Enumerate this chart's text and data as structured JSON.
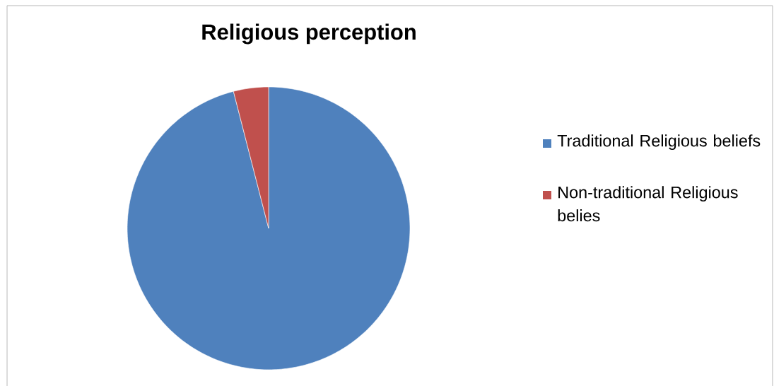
{
  "chart_data": {
    "type": "pie",
    "title": "Religious perception",
    "categories": [
      "Traditional Religious beliefs",
      "Non-traditional Religious belies"
    ],
    "values": [
      96,
      4
    ],
    "colors": [
      "#4f81bd",
      "#c0504d"
    ],
    "legend": "right"
  }
}
